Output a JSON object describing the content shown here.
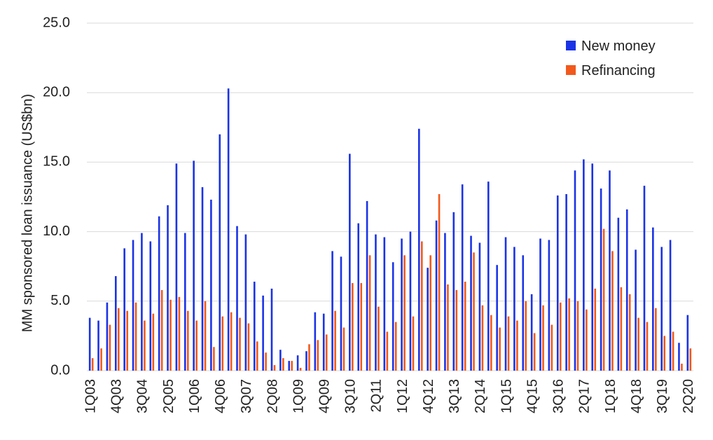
{
  "chart_data": {
    "type": "bar",
    "ylabel": "MM sponsored loan issuance (US$bn)",
    "ylim": [
      0,
      25
    ],
    "yticks": [
      "0.0",
      "5.0",
      "10.0",
      "15.0",
      "20.0",
      "25.0"
    ],
    "grid": true,
    "legend_position": "top-right",
    "categories": [
      "1Q03",
      "2Q03",
      "3Q03",
      "4Q03",
      "1Q04",
      "2Q04",
      "3Q04",
      "4Q04",
      "1Q05",
      "2Q05",
      "3Q05",
      "4Q05",
      "1Q06",
      "2Q06",
      "3Q06",
      "4Q06",
      "1Q07",
      "2Q07",
      "3Q07",
      "4Q07",
      "1Q08",
      "2Q08",
      "3Q08",
      "4Q08",
      "1Q09",
      "2Q09",
      "3Q09",
      "4Q09",
      "1Q10",
      "2Q10",
      "3Q10",
      "4Q10",
      "1Q11",
      "2Q11",
      "3Q11",
      "4Q11",
      "1Q12",
      "2Q12",
      "3Q12",
      "4Q12",
      "1Q13",
      "2Q13",
      "3Q13",
      "4Q13",
      "1Q14",
      "2Q14",
      "3Q14",
      "4Q14",
      "1Q15",
      "2Q15",
      "3Q15",
      "4Q15",
      "1Q16",
      "2Q16",
      "3Q16",
      "4Q16",
      "1Q17",
      "2Q17",
      "3Q17",
      "4Q17",
      "1Q18",
      "2Q18",
      "3Q18",
      "4Q18",
      "1Q19",
      "2Q19",
      "3Q19",
      "4Q19",
      "1Q20",
      "2Q20"
    ],
    "visible_xticks": [
      "1Q03",
      "4Q03",
      "3Q04",
      "2Q05",
      "1Q06",
      "4Q06",
      "3Q07",
      "2Q08",
      "1Q09",
      "4Q09",
      "3Q10",
      "2Q11",
      "1Q12",
      "4Q12",
      "3Q13",
      "2Q14",
      "1Q15",
      "4Q15",
      "3Q16",
      "2Q17",
      "1Q18",
      "4Q18",
      "3Q19",
      "2Q20"
    ],
    "series": [
      {
        "name": "New money",
        "color": "#1a33e6",
        "values": [
          3.8,
          3.6,
          4.9,
          6.8,
          8.8,
          9.4,
          9.9,
          9.3,
          11.1,
          11.9,
          14.9,
          9.9,
          15.1,
          13.2,
          12.3,
          17.0,
          20.3,
          10.4,
          9.8,
          6.4,
          5.4,
          5.9,
          1.5,
          0.7,
          1.1,
          1.4,
          4.2,
          4.1,
          8.6,
          8.2,
          15.6,
          10.6,
          12.2,
          9.8,
          9.6,
          7.8,
          9.5,
          10.0,
          17.4,
          7.4,
          10.8,
          9.9,
          11.4,
          13.4,
          9.7,
          9.2,
          13.6,
          7.6,
          9.6,
          8.9,
          8.3,
          5.5,
          9.5,
          9.4,
          12.6,
          12.7,
          14.4,
          15.2,
          14.9,
          13.1,
          14.4,
          11.0,
          11.6,
          8.7,
          13.3,
          10.3,
          8.9,
          9.4,
          2.0,
          4.0
        ]
      },
      {
        "name": "Refinancing",
        "color": "#f2591c",
        "values": [
          0.9,
          1.6,
          3.3,
          4.5,
          4.3,
          4.9,
          3.6,
          4.1,
          5.8,
          5.1,
          5.3,
          4.3,
          3.6,
          5.0,
          1.7,
          3.9,
          4.2,
          3.8,
          3.4,
          2.1,
          1.3,
          0.4,
          0.9,
          0.7,
          0.2,
          1.9,
          2.2,
          2.6,
          4.3,
          3.1,
          6.3,
          6.3,
          8.3,
          4.6,
          2.8,
          3.5,
          8.3,
          3.9,
          9.3,
          8.3,
          12.7,
          6.2,
          5.8,
          6.4,
          8.5,
          4.7,
          4.0,
          3.1,
          3.9,
          3.6,
          5.0,
          2.7,
          4.7,
          3.3,
          4.9,
          5.2,
          5.0,
          4.4,
          5.9,
          10.2,
          8.6,
          6.0,
          5.5,
          3.8,
          3.5,
          4.5,
          2.5,
          2.8,
          0.5,
          1.6
        ]
      }
    ]
  }
}
